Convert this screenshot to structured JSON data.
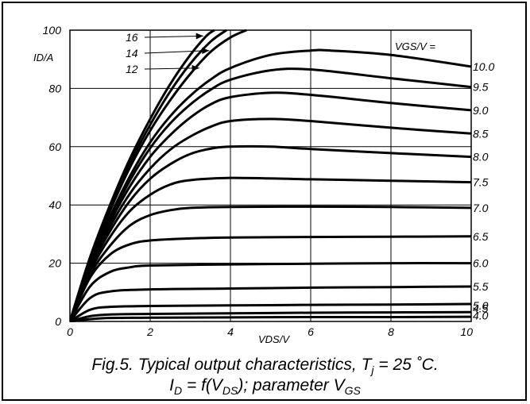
{
  "caption": {
    "line1_pre": "Fig.5.  Typical output characteristics, T",
    "line1_sub": "j",
    "line1_post": " = 25 ˚C.",
    "line2_a": "I",
    "line2_a_sub": "D",
    "line2_b": " = f(V",
    "line2_b_sub": "DS",
    "line2_c": "); parameter V",
    "line2_c_sub": "GS"
  },
  "chart_data": {
    "type": "line",
    "title": "Fig.5.  Typical output characteristics, Tj = 25 ˚C. ID = f(VDS); parameter VGS",
    "xlabel": "VDS/V",
    "ylabel": "ID/A",
    "legend_title": "VGS/V =",
    "xlim": [
      0,
      10
    ],
    "ylim": [
      0,
      100
    ],
    "x_ticks": [
      "0",
      "2",
      "4",
      "6",
      "8",
      "10"
    ],
    "y_ticks": [
      "0",
      "20",
      "40",
      "60",
      "80",
      "100"
    ],
    "grid": true,
    "series": [
      {
        "name": "4.0",
        "label_side": "right",
        "points": [
          [
            0,
            0
          ],
          [
            0.5,
            0.8
          ],
          [
            1,
            1.2
          ],
          [
            2,
            1.3
          ],
          [
            4,
            1.4
          ],
          [
            6,
            1.5
          ],
          [
            8,
            1.5
          ],
          [
            10,
            1.6
          ]
        ]
      },
      {
        "name": "4.5",
        "label_side": "right",
        "points": [
          [
            0,
            0
          ],
          [
            0.5,
            1.8
          ],
          [
            1,
            2.4
          ],
          [
            2,
            2.6
          ],
          [
            4,
            2.8
          ],
          [
            6,
            3.0
          ],
          [
            8,
            3.1
          ],
          [
            10,
            3.2
          ]
        ]
      },
      {
        "name": "5.0",
        "label_side": "right",
        "points": [
          [
            0,
            0
          ],
          [
            0.5,
            4
          ],
          [
            1,
            5
          ],
          [
            2,
            5.3
          ],
          [
            4,
            5.5
          ],
          [
            6,
            5.7
          ],
          [
            8,
            5.8
          ],
          [
            10,
            6.0
          ]
        ]
      },
      {
        "name": "5.5",
        "label_side": "right",
        "points": [
          [
            0,
            0
          ],
          [
            0.5,
            8
          ],
          [
            1,
            10.3
          ],
          [
            2,
            11
          ],
          [
            4,
            11.3
          ],
          [
            6,
            11.6
          ],
          [
            8,
            11.8
          ],
          [
            10,
            12.0
          ]
        ]
      },
      {
        "name": "6.0",
        "label_side": "right",
        "points": [
          [
            0,
            0
          ],
          [
            0.5,
            12
          ],
          [
            1,
            17
          ],
          [
            1.5,
            18.6
          ],
          [
            2,
            19.2
          ],
          [
            4,
            19.6
          ],
          [
            6,
            19.8
          ],
          [
            8,
            20.0
          ],
          [
            10,
            20.0
          ]
        ]
      },
      {
        "name": "6.5",
        "label_side": "right",
        "points": [
          [
            0,
            0
          ],
          [
            0.5,
            15
          ],
          [
            1,
            23
          ],
          [
            1.5,
            26.5
          ],
          [
            2,
            27.8
          ],
          [
            3,
            28.5
          ],
          [
            4,
            28.8
          ],
          [
            6,
            29.0
          ],
          [
            8,
            29.1
          ],
          [
            10,
            29.2
          ]
        ]
      },
      {
        "name": "7.0",
        "label_side": "right",
        "points": [
          [
            0,
            0
          ],
          [
            0.5,
            16
          ],
          [
            1,
            26
          ],
          [
            1.5,
            33
          ],
          [
            2,
            36.5
          ],
          [
            2.5,
            38.2
          ],
          [
            3,
            39
          ],
          [
            4,
            39.3
          ],
          [
            6,
            39.4
          ],
          [
            8,
            39.3
          ],
          [
            10,
            39.0
          ]
        ]
      },
      {
        "name": "7.5",
        "label_side": "right",
        "points": [
          [
            0,
            0
          ],
          [
            0.5,
            17
          ],
          [
            1,
            29
          ],
          [
            1.5,
            38
          ],
          [
            2,
            43.5
          ],
          [
            2.5,
            47
          ],
          [
            3,
            48.5
          ],
          [
            4,
            49.3
          ],
          [
            6,
            48.8
          ],
          [
            8,
            48.3
          ],
          [
            10,
            47.8
          ]
        ]
      },
      {
        "name": "8.0",
        "label_side": "right",
        "points": [
          [
            0,
            0
          ],
          [
            0.5,
            18
          ],
          [
            1,
            31
          ],
          [
            1.5,
            41.5
          ],
          [
            2,
            49
          ],
          [
            2.5,
            54
          ],
          [
            3,
            57.5
          ],
          [
            3.5,
            59.3
          ],
          [
            4,
            60
          ],
          [
            5,
            60
          ],
          [
            6,
            59.2
          ],
          [
            8,
            57.8
          ],
          [
            10,
            56.5
          ]
        ]
      },
      {
        "name": "8.5",
        "label_side": "right",
        "points": [
          [
            0,
            0
          ],
          [
            0.5,
            18.5
          ],
          [
            1,
            32.5
          ],
          [
            1.5,
            44
          ],
          [
            2,
            52.5
          ],
          [
            2.5,
            59
          ],
          [
            3,
            63.5
          ],
          [
            3.5,
            66.8
          ],
          [
            4,
            68.8
          ],
          [
            5,
            69.5
          ],
          [
            6,
            68.8
          ],
          [
            8,
            66.5
          ],
          [
            10,
            64.5
          ]
        ]
      },
      {
        "name": "9.0",
        "label_side": "right",
        "points": [
          [
            0,
            0
          ],
          [
            0.5,
            19
          ],
          [
            1,
            34
          ],
          [
            1.5,
            46.5
          ],
          [
            2,
            56.5
          ],
          [
            2.5,
            64
          ],
          [
            3,
            70
          ],
          [
            3.5,
            74.5
          ],
          [
            4,
            77
          ],
          [
            5,
            78.5
          ],
          [
            6,
            77.8
          ],
          [
            8,
            75
          ],
          [
            10,
            72.5
          ]
        ]
      },
      {
        "name": "9.5",
        "label_side": "right",
        "points": [
          [
            0,
            0
          ],
          [
            0.5,
            19.5
          ],
          [
            1,
            35
          ],
          [
            1.5,
            48.5
          ],
          [
            2,
            59.5
          ],
          [
            2.5,
            68
          ],
          [
            3,
            74.5
          ],
          [
            3.5,
            79.5
          ],
          [
            4,
            83
          ],
          [
            5,
            86.2
          ],
          [
            6,
            86.5
          ],
          [
            8,
            83.5
          ],
          [
            10,
            80.5
          ]
        ]
      },
      {
        "name": "10.0",
        "label_side": "right",
        "points": [
          [
            0,
            0
          ],
          [
            0.5,
            20
          ],
          [
            1,
            36
          ],
          [
            1.5,
            50
          ],
          [
            2,
            61.5
          ],
          [
            2.5,
            70.5
          ],
          [
            3,
            77.5
          ],
          [
            3.5,
            83
          ],
          [
            4,
            87
          ],
          [
            5,
            91.5
          ],
          [
            6,
            93
          ],
          [
            6.5,
            93
          ],
          [
            8,
            91.5
          ],
          [
            10,
            87.5
          ]
        ]
      },
      {
        "name": "12",
        "label_side": "left",
        "points": [
          [
            0,
            0
          ],
          [
            0.5,
            21
          ],
          [
            1,
            38
          ],
          [
            1.5,
            53
          ],
          [
            2,
            65.5
          ],
          [
            2.5,
            76
          ],
          [
            3,
            85
          ],
          [
            3.5,
            92.5
          ],
          [
            4,
            97.5
          ],
          [
            4.4,
            100
          ]
        ]
      },
      {
        "name": "14",
        "label_side": "left",
        "points": [
          [
            0,
            0
          ],
          [
            0.5,
            21.5
          ],
          [
            1,
            39
          ],
          [
            1.5,
            54.5
          ],
          [
            2,
            67.5
          ],
          [
            2.5,
            79
          ],
          [
            3,
            88.5
          ],
          [
            3.5,
            96
          ],
          [
            3.9,
            100
          ]
        ]
      },
      {
        "name": "16",
        "label_side": "left",
        "points": [
          [
            0,
            0
          ],
          [
            0.5,
            22
          ],
          [
            1,
            40
          ],
          [
            1.5,
            56
          ],
          [
            2,
            69.5
          ],
          [
            2.5,
            81.5
          ],
          [
            3,
            91.5
          ],
          [
            3.4,
            98
          ],
          [
            3.6,
            100
          ]
        ]
      }
    ]
  }
}
